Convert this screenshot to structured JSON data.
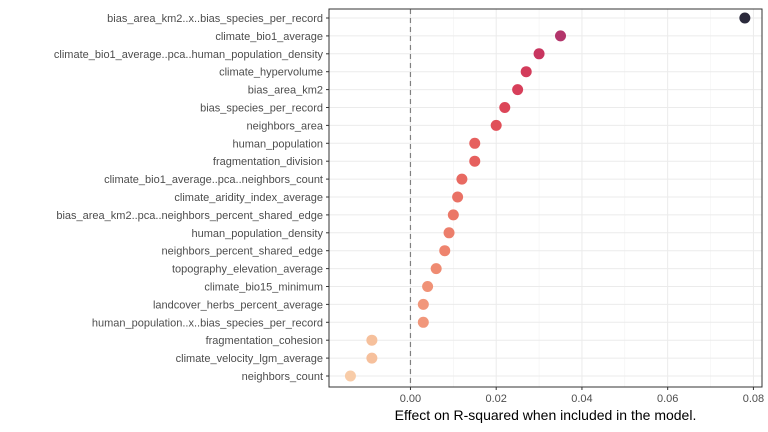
{
  "chart_data": {
    "type": "scatter",
    "title": "",
    "xlabel": "Effect on R-squared when included in the model.",
    "ylabel": "",
    "xlim": [
      -0.019,
      0.082
    ],
    "xticks": [
      0.0,
      0.02,
      0.04,
      0.06,
      0.08
    ],
    "xtick_labels": [
      "0.00",
      "0.02",
      "0.04",
      "0.06",
      "0.08"
    ],
    "reference_line": {
      "x": 0,
      "style": "dashed"
    },
    "grid": true,
    "legend": "none",
    "points": [
      {
        "label": "bias_area_km2..x..bias_species_per_record",
        "value": 0.078,
        "color": "#2b2a3c"
      },
      {
        "label": "climate_bio1_average",
        "value": 0.035,
        "color": "#b3356b"
      },
      {
        "label": "climate_bio1_average..pca..human_population_density",
        "value": 0.03,
        "color": "#c8355f"
      },
      {
        "label": "climate_hypervolume",
        "value": 0.027,
        "color": "#d33c5b"
      },
      {
        "label": "bias_area_km2",
        "value": 0.025,
        "color": "#d73f5a"
      },
      {
        "label": "bias_species_per_record",
        "value": 0.022,
        "color": "#dc4658"
      },
      {
        "label": "neighbors_area",
        "value": 0.02,
        "color": "#e04f58"
      },
      {
        "label": "human_population",
        "value": 0.015,
        "color": "#e6605e"
      },
      {
        "label": "fragmentation_division",
        "value": 0.015,
        "color": "#e6605e"
      },
      {
        "label": "climate_bio1_average..pca..neighbors_count",
        "value": 0.012,
        "color": "#e86a62"
      },
      {
        "label": "climate_aridity_index_average",
        "value": 0.011,
        "color": "#e97165"
      },
      {
        "label": "bias_area_km2..pca..neighbors_percent_shared_edge",
        "value": 0.01,
        "color": "#eb7767"
      },
      {
        "label": "human_population_density",
        "value": 0.009,
        "color": "#ec7e6b"
      },
      {
        "label": "neighbors_percent_shared_edge",
        "value": 0.008,
        "color": "#ee846e"
      },
      {
        "label": "topography_elevation_average",
        "value": 0.006,
        "color": "#ef8b72"
      },
      {
        "label": "climate_bio15_minimum",
        "value": 0.004,
        "color": "#f09277"
      },
      {
        "label": "landcover_herbs_percent_average",
        "value": 0.003,
        "color": "#f1977b"
      },
      {
        "label": "human_population..x..bias_species_per_record",
        "value": 0.003,
        "color": "#f1977b"
      },
      {
        "label": "fragmentation_cohesion",
        "value": -0.009,
        "color": "#f6c09c"
      },
      {
        "label": "climate_velocity_lgm_average",
        "value": -0.009,
        "color": "#f6c09c"
      },
      {
        "label": "neighbors_count",
        "value": -0.014,
        "color": "#f8cca8"
      }
    ]
  }
}
